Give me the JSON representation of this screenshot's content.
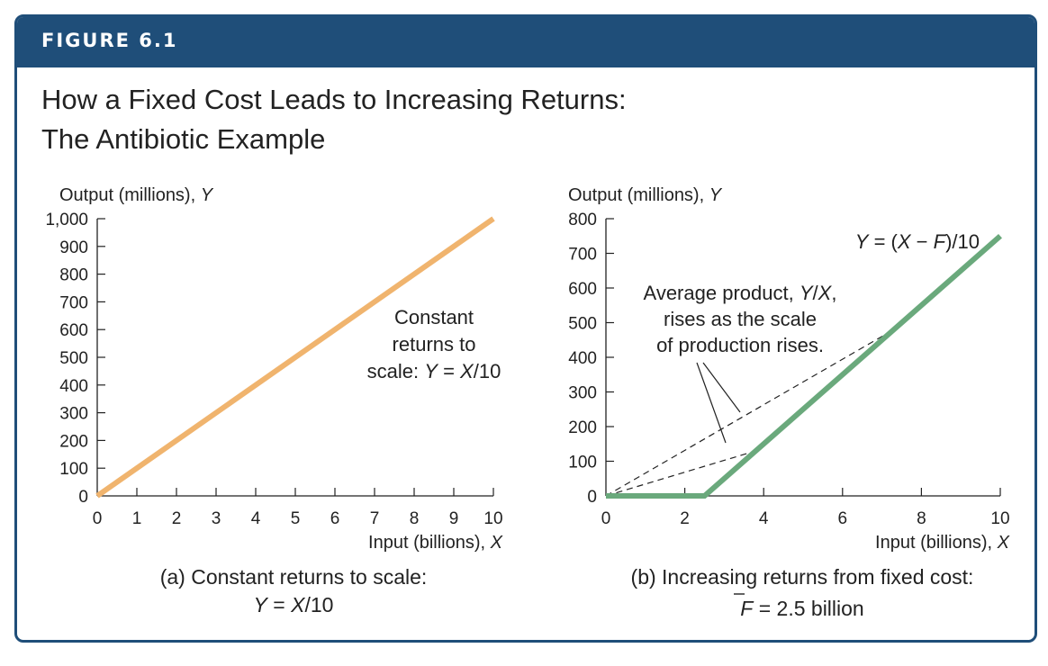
{
  "figure": {
    "label": "FIGURE 6.1",
    "title_line1": "How a Fixed Cost Leads to Increasing Returns:",
    "title_line2": "The Antibiotic Example"
  },
  "colors": {
    "frame": "#1f4e79",
    "panel_a_line": "#f0b46e",
    "panel_b_line": "#6aa97c",
    "dashed": "#222222"
  },
  "chart_data": [
    {
      "type": "line",
      "panel": "a",
      "ylabel": "Output (millions), Y",
      "xlabel": "Input (billions), X",
      "xlim": [
        0,
        10
      ],
      "ylim": [
        0,
        1000
      ],
      "x_ticks": [
        "0",
        "1",
        "2",
        "3",
        "4",
        "5",
        "6",
        "7",
        "8",
        "9",
        "10"
      ],
      "y_ticks": [
        "0",
        "100",
        "200",
        "300",
        "400",
        "500",
        "600",
        "700",
        "800",
        "900",
        "1,000"
      ],
      "series": [
        {
          "x": [
            0,
            10
          ],
          "y": [
            0,
            1000
          ]
        }
      ],
      "annotation": [
        "Constant",
        "returns to",
        "scale: Y = X/10"
      ],
      "caption": [
        "(a) Constant returns to scale:",
        "Y = X/10"
      ]
    },
    {
      "type": "line",
      "panel": "b",
      "ylabel": "Output (millions), Y",
      "xlabel": "Input (billions), X",
      "xlim": [
        0,
        10
      ],
      "ylim": [
        0,
        800
      ],
      "x_ticks": [
        "0",
        "2",
        "4",
        "6",
        "8",
        "10"
      ],
      "y_ticks": [
        "0",
        "100",
        "200",
        "300",
        "400",
        "500",
        "600",
        "700",
        "800"
      ],
      "series": [
        {
          "x": [
            0,
            2.5,
            10
          ],
          "y": [
            0,
            0,
            750
          ]
        }
      ],
      "rays": [
        {
          "x": [
            0,
            3.8
          ],
          "y": [
            0,
            130
          ]
        },
        {
          "x": [
            0,
            7.3
          ],
          "y": [
            0,
            480
          ]
        }
      ],
      "equation_label": "Y = (X − F)/10",
      "annotation": [
        "Average product, Y/X,",
        "rises as the scale",
        "of production rises."
      ],
      "caption": [
        "(b) Increasing returns from fixed cost:",
        "F = 2.5 billion"
      ]
    }
  ]
}
